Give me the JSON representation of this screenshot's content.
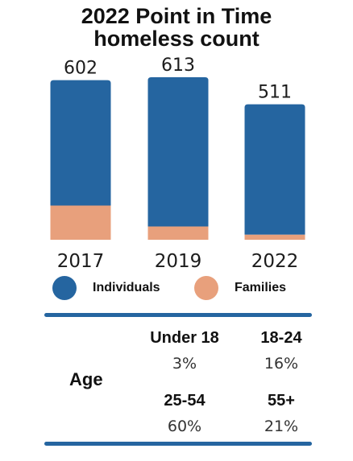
{
  "title_line1": "2022 Point in Time",
  "title_line2": "homeless count",
  "colors": {
    "individuals": "#2565a0",
    "families": "#e8a07c",
    "rule": "#2565a0"
  },
  "legend": [
    {
      "label": "Individuals",
      "color": "#2565a0"
    },
    {
      "label": "Families",
      "color": "#e8a07c"
    }
  ],
  "chart_data": {
    "type": "bar",
    "stacked": true,
    "categories": [
      "2017",
      "2019",
      "2022"
    ],
    "totals": [
      602,
      613,
      511
    ],
    "series": [
      {
        "name": "Individuals",
        "values": [
          473,
          563,
          492
        ]
      },
      {
        "name": "Families",
        "values": [
          129,
          50,
          19
        ]
      }
    ]
  },
  "age": {
    "label": "Age",
    "groups": [
      {
        "name": "Under 18",
        "value": "3%"
      },
      {
        "name": "18-24",
        "value": "16%"
      },
      {
        "name": "25-54",
        "value": "60%"
      },
      {
        "name": "55+",
        "value": "21%"
      }
    ]
  }
}
